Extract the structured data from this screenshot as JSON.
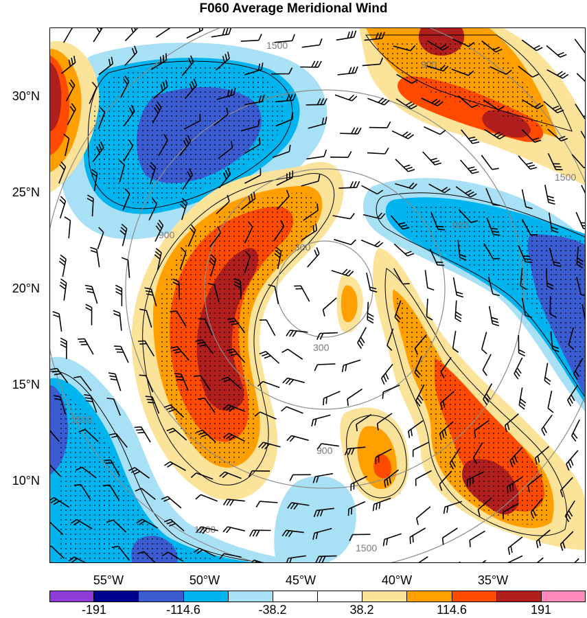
{
  "title": "F060 Average Meridional Wind",
  "axes": {
    "lat_labels": [
      "30°N",
      "25°N",
      "20°N",
      "15°N",
      "10°N"
    ],
    "lon_labels": [
      "55°W",
      "50°W",
      "45°W",
      "40°W",
      "35°W"
    ]
  },
  "colorbar": {
    "colors": [
      "#8f3cd8",
      "#00008f",
      "#3b5bd1",
      "#00b4f0",
      "#a8e0f5",
      "#ffffff",
      "#ffffff",
      "#fbe39a",
      "#ff9f00",
      "#ff4a00",
      "#b01e1e",
      "#ff88bb"
    ],
    "labels": [
      "-191",
      "-114.6",
      "-38.2",
      "38.2",
      "114.6",
      "191"
    ]
  },
  "rings": [
    {
      "label": "300"
    },
    {
      "label": "300"
    },
    {
      "label": "900"
    },
    {
      "label": "900"
    },
    {
      "label": "900"
    },
    {
      "label": "1500"
    },
    {
      "label": "1500"
    },
    {
      "label": "1500"
    },
    {
      "label": "1500"
    },
    {
      "label": "1500"
    },
    {
      "label": "900"
    }
  ]
}
